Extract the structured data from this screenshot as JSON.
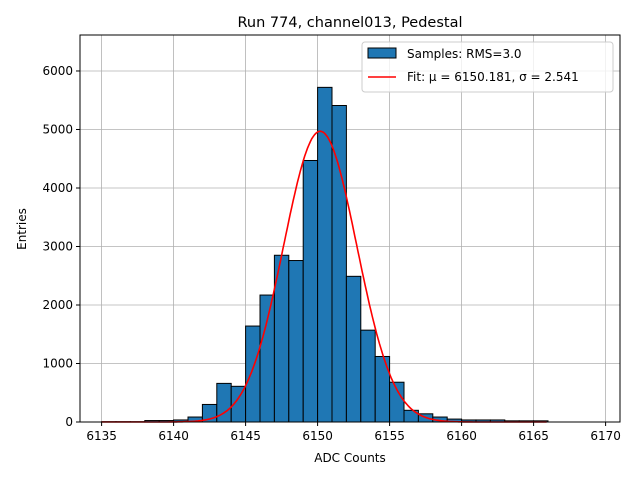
{
  "chart_data": {
    "type": "bar",
    "title": "Run 774, channel013, Pedestal",
    "xlabel": "ADC Counts",
    "ylabel": "Entries",
    "xlim": [
      6133.5,
      6171
    ],
    "ylim": [
      0,
      6615
    ],
    "grid": true,
    "xticks": [
      6135,
      6140,
      6145,
      6150,
      6155,
      6160,
      6165,
      6170
    ],
    "yticks": [
      0,
      1000,
      2000,
      3000,
      4000,
      5000,
      6000
    ],
    "bin_width": 1,
    "bins": [
      6135,
      6136,
      6137,
      6138,
      6139,
      6140,
      6141,
      6142,
      6143,
      6144,
      6145,
      6146,
      6147,
      6148,
      6149,
      6150,
      6151,
      6152,
      6153,
      6154,
      6155,
      6156,
      6157,
      6158,
      6159,
      6160,
      6161,
      6162,
      6163,
      6164,
      6165
    ],
    "values": [
      5,
      5,
      5,
      25,
      25,
      35,
      85,
      300,
      660,
      610,
      1640,
      2170,
      2850,
      2760,
      4470,
      5720,
      5410,
      2490,
      1570,
      1120,
      680,
      200,
      140,
      85,
      50,
      35,
      35,
      35,
      20,
      20,
      20
    ],
    "fit": {
      "mu": 6150.181,
      "sigma": 2.541,
      "amplitude": 4970,
      "range": [
        6135,
        6166
      ]
    },
    "colors": {
      "bar": "#1f77b4",
      "fit": "#ff0000"
    },
    "legend": {
      "position": "top-right",
      "entries": [
        "Samples: RMS=3.0",
        "Fit: μ = 6150.181, σ = 2.541"
      ]
    }
  }
}
